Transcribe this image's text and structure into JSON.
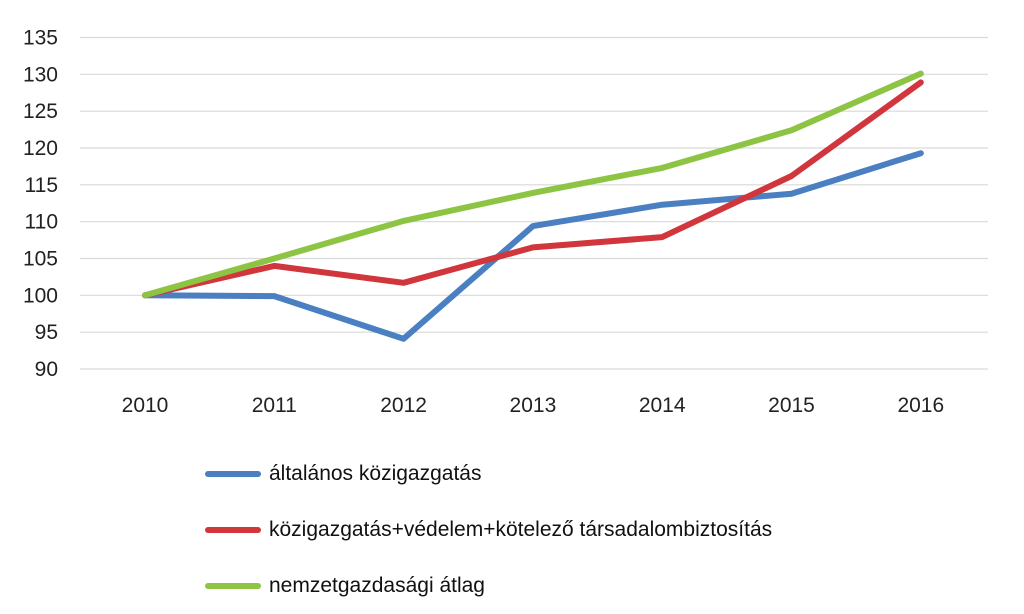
{
  "chart_data": {
    "type": "line",
    "categories": [
      "2010",
      "2011",
      "2012",
      "2013",
      "2014",
      "2015",
      "2016"
    ],
    "series": [
      {
        "name": "általános közigazgatás",
        "color": "#4a7fc1",
        "values": [
          100,
          99.9,
          94.1,
          109.4,
          112.3,
          113.8,
          119.3
        ]
      },
      {
        "name": "közigazgatás+védelem+kötelező társadalombiztosítás",
        "color": "#d1363d",
        "values": [
          100,
          104.0,
          101.7,
          106.5,
          107.9,
          116.2,
          128.9
        ]
      },
      {
        "name": "nemzetgazdasági átlag",
        "color": "#8dc444",
        "values": [
          100,
          105.0,
          110.1,
          113.9,
          117.3,
          122.4,
          130.1
        ]
      }
    ],
    "yticks": [
      "135",
      "130",
      "125",
      "120",
      "115",
      "110",
      "105",
      "100",
      "95",
      "90"
    ],
    "ylim": [
      90,
      135
    ],
    "grid": true,
    "legend_position": "bottom"
  }
}
